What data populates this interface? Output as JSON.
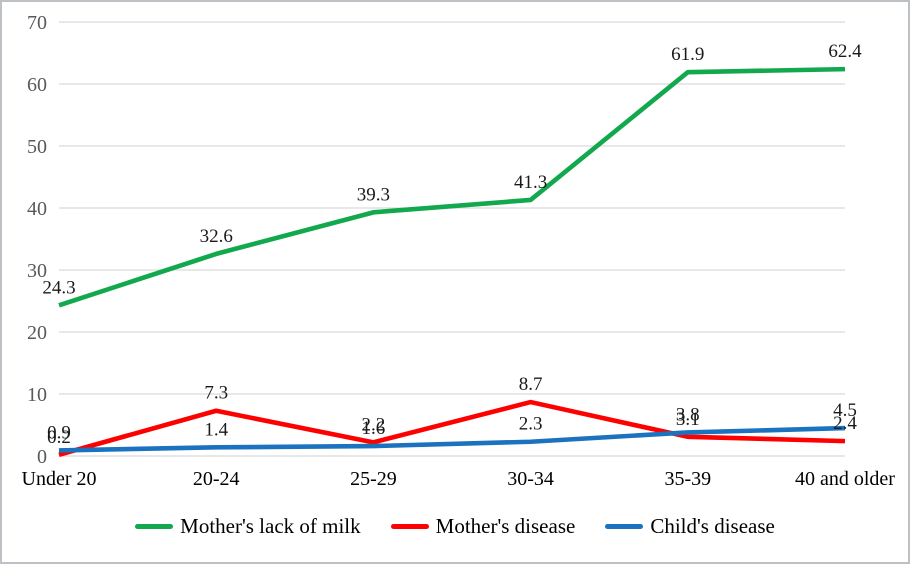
{
  "chart_data": {
    "type": "line",
    "title": "",
    "categories": [
      "Under 20",
      "20-24",
      "25-29",
      "30-34",
      "35-39",
      "40 and older"
    ],
    "series": [
      {
        "name": "Mother's lack of milk",
        "color": "#12a84e",
        "values": [
          24.3,
          32.6,
          39.3,
          41.3,
          61.9,
          62.4
        ]
      },
      {
        "name": "Mother's disease",
        "color": "#fe0000",
        "values": [
          0.2,
          7.3,
          2.2,
          8.7,
          3.1,
          2.4
        ]
      },
      {
        "name": "Child's disease",
        "color": "#1b72be",
        "values": [
          0.9,
          1.4,
          1.6,
          2.3,
          3.8,
          4.5
        ]
      }
    ],
    "y_axis": {
      "min": 0,
      "max": 70,
      "step": 10,
      "tick_labels": [
        "0",
        "10",
        "20",
        "30",
        "40",
        "50",
        "60",
        "70"
      ]
    },
    "grid": true,
    "data_labels": true,
    "legend_position": "bottom"
  },
  "colors": {
    "background": "#ffffff",
    "border": "#bdc0c4",
    "gridline": "#d9d9d9",
    "y_tick_text": "#595959",
    "x_tick_text": "#000000",
    "data_label_text": "#1a1a1a"
  }
}
